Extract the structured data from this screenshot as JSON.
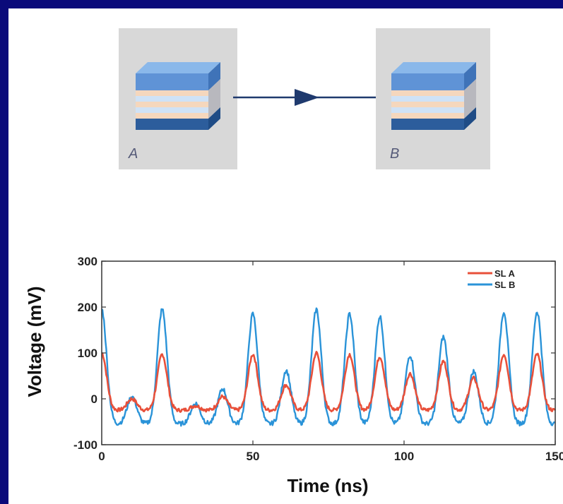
{
  "diagram": {
    "box_a_label": "A",
    "box_b_label": "B"
  },
  "colors": {
    "frame": "#0a0a7a",
    "series_a": "#e8503a",
    "series_b": "#2a93d8",
    "arrow": "#1f3a6e",
    "box_bg": "#d8d8d8"
  },
  "chart_data": {
    "type": "line",
    "xlabel": "Time (ns)",
    "ylabel": "Voltage (mV)",
    "xlim": [
      0,
      150
    ],
    "ylim": [
      -100,
      300
    ],
    "xticks": [
      0,
      50,
      100,
      150
    ],
    "yticks": [
      -100,
      0,
      100,
      200,
      300
    ],
    "grid": false,
    "legend": "top-right",
    "series": [
      {
        "name": "SL A",
        "color": "#e8503a",
        "baseline": -25,
        "peaks": [
          [
            0,
            100
          ],
          [
            10,
            0
          ],
          [
            20,
            97
          ],
          [
            31,
            -15
          ],
          [
            40,
            5
          ],
          [
            50,
            97
          ],
          [
            61,
            30
          ],
          [
            71,
            100
          ],
          [
            82,
            97
          ],
          [
            92,
            92
          ],
          [
            102,
            55
          ],
          [
            113,
            82
          ],
          [
            123,
            45
          ],
          [
            133,
            97
          ],
          [
            144,
            97
          ]
        ]
      },
      {
        "name": "SL B",
        "color": "#2a93d8",
        "baseline": -55,
        "peaks": [
          [
            0,
            195
          ],
          [
            10,
            5
          ],
          [
            20,
            195
          ],
          [
            31,
            -10
          ],
          [
            40,
            22
          ],
          [
            50,
            185
          ],
          [
            61,
            62
          ],
          [
            71,
            195
          ],
          [
            82,
            185
          ],
          [
            92,
            180
          ],
          [
            102,
            95
          ],
          [
            113,
            135
          ],
          [
            123,
            60
          ],
          [
            133,
            190
          ],
          [
            144,
            190
          ]
        ]
      }
    ]
  }
}
